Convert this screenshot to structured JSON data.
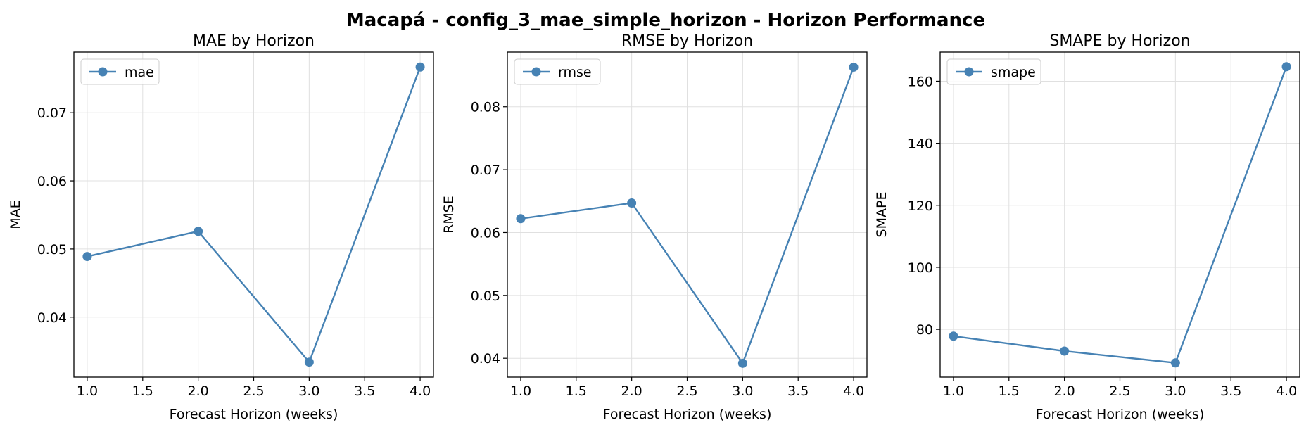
{
  "figure": {
    "title": "Macapá - config_3_mae_simple_horizon - Horizon Performance"
  },
  "style": {
    "line_color": "#4682b4",
    "grid_color": "#e0e0e0"
  },
  "chart_data": [
    {
      "type": "line",
      "title": "MAE by Horizon",
      "xlabel": "Forecast Horizon (weeks)",
      "ylabel": "MAE",
      "x": [
        1.0,
        2.0,
        3.0,
        4.0
      ],
      "series": [
        {
          "name": "mae",
          "values": [
            0.0489,
            0.0526,
            0.0334,
            0.0767
          ]
        }
      ],
      "xlim": [
        0.88,
        4.12
      ],
      "ylim": [
        0.0312,
        0.0789
      ],
      "xticks": [
        "1.0",
        "1.5",
        "2.0",
        "2.5",
        "3.0",
        "3.5",
        "4.0"
      ],
      "yticks": [
        "0.04",
        "0.05",
        "0.06",
        "0.07"
      ],
      "grid": true,
      "legend": "upper-left"
    },
    {
      "type": "line",
      "title": "RMSE by Horizon",
      "xlabel": "Forecast Horizon (weeks)",
      "ylabel": "RMSE",
      "x": [
        1.0,
        2.0,
        3.0,
        4.0
      ],
      "series": [
        {
          "name": "rmse",
          "values": [
            0.0622,
            0.0647,
            0.0392,
            0.0863
          ]
        }
      ],
      "xlim": [
        0.88,
        4.12
      ],
      "ylim": [
        0.037,
        0.0887
      ],
      "xticks": [
        "1.0",
        "1.5",
        "2.0",
        "2.5",
        "3.0",
        "3.5",
        "4.0"
      ],
      "yticks": [
        "0.04",
        "0.05",
        "0.06",
        "0.07",
        "0.08"
      ],
      "grid": true,
      "legend": "upper-left"
    },
    {
      "type": "line",
      "title": "SMAPE by Horizon",
      "xlabel": "Forecast Horizon (weeks)",
      "ylabel": "SMAPE",
      "x": [
        1.0,
        2.0,
        3.0,
        4.0
      ],
      "series": [
        {
          "name": "smape",
          "values": [
            77.8,
            73.0,
            69.2,
            164.7
          ]
        }
      ],
      "xlim": [
        0.88,
        4.12
      ],
      "ylim": [
        64.6,
        169.4
      ],
      "xticks": [
        "1.0",
        "1.5",
        "2.0",
        "2.5",
        "3.0",
        "3.5",
        "4.0"
      ],
      "yticks": [
        "80",
        "100",
        "120",
        "140",
        "160"
      ],
      "grid": true,
      "legend": "upper-left"
    }
  ]
}
